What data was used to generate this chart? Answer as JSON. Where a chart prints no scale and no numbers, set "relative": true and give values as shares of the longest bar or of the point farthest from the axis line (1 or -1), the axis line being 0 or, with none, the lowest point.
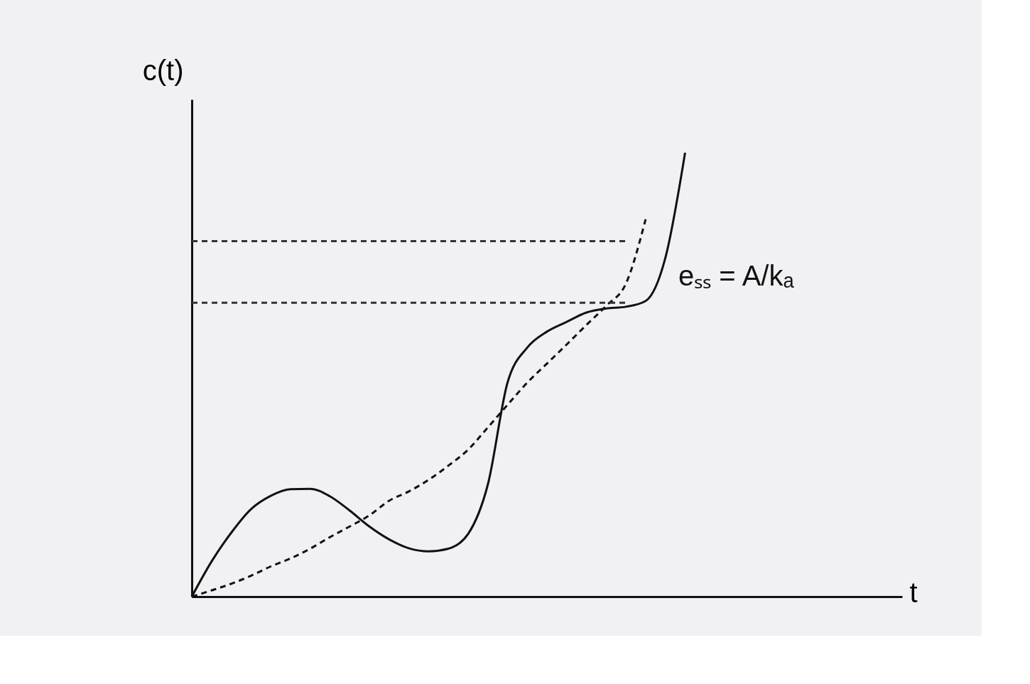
{
  "chart_data": {
    "type": "line",
    "relative": true,
    "xlabel": "t",
    "ylabel": "c(t)",
    "categories": [
      null,
      null,
      null,
      null,
      null,
      null,
      null,
      null,
      null,
      null,
      null,
      null,
      null,
      null,
      null,
      null,
      null,
      null,
      null,
      null,
      null,
      null,
      null,
      null,
      null,
      null,
      null,
      null,
      null,
      null,
      null,
      null,
      null,
      null,
      null,
      null,
      null
    ],
    "series": [
      {
        "color": "#111111",
        "line_style": "solid",
        "values": [
          0,
          0.079,
          0.144,
          0.197,
          0.227,
          0.242,
          0.243,
          0.226,
          0.194,
          0.158,
          0.129,
          0.109,
          0.102,
          0.108,
          0.141,
          0.252,
          0.482,
          0.561,
          0.597,
          0.619,
          0.64,
          0.649,
          0.653,
          0.666,
          0.763,
          1.0,
          null,
          null,
          null,
          null,
          null,
          null,
          null,
          null,
          null,
          null,
          null
        ]
      },
      {
        "color": "#111111",
        "line_style": "dashed",
        "values": [
          0,
          0.014,
          0.029,
          0.047,
          0.068,
          0.086,
          0.108,
          0.134,
          0.158,
          0.183,
          0.216,
          0.237,
          0.263,
          0.295,
          0.331,
          0.381,
          0.432,
          0.482,
          0.525,
          0.568,
          0.612,
          0.655,
          0.705,
          0.85,
          null,
          null,
          null,
          null,
          null,
          null,
          null,
          null,
          null,
          null,
          null,
          null,
          null
        ]
      }
    ],
    "ref_lines": [
      {
        "axis": "y",
        "value": 0.801,
        "line_style": "dashed"
      },
      {
        "axis": "y",
        "value": 0.662,
        "line_style": "dashed"
      }
    ],
    "annotations": [
      "eₛₛ = A/kₐ"
    ]
  }
}
